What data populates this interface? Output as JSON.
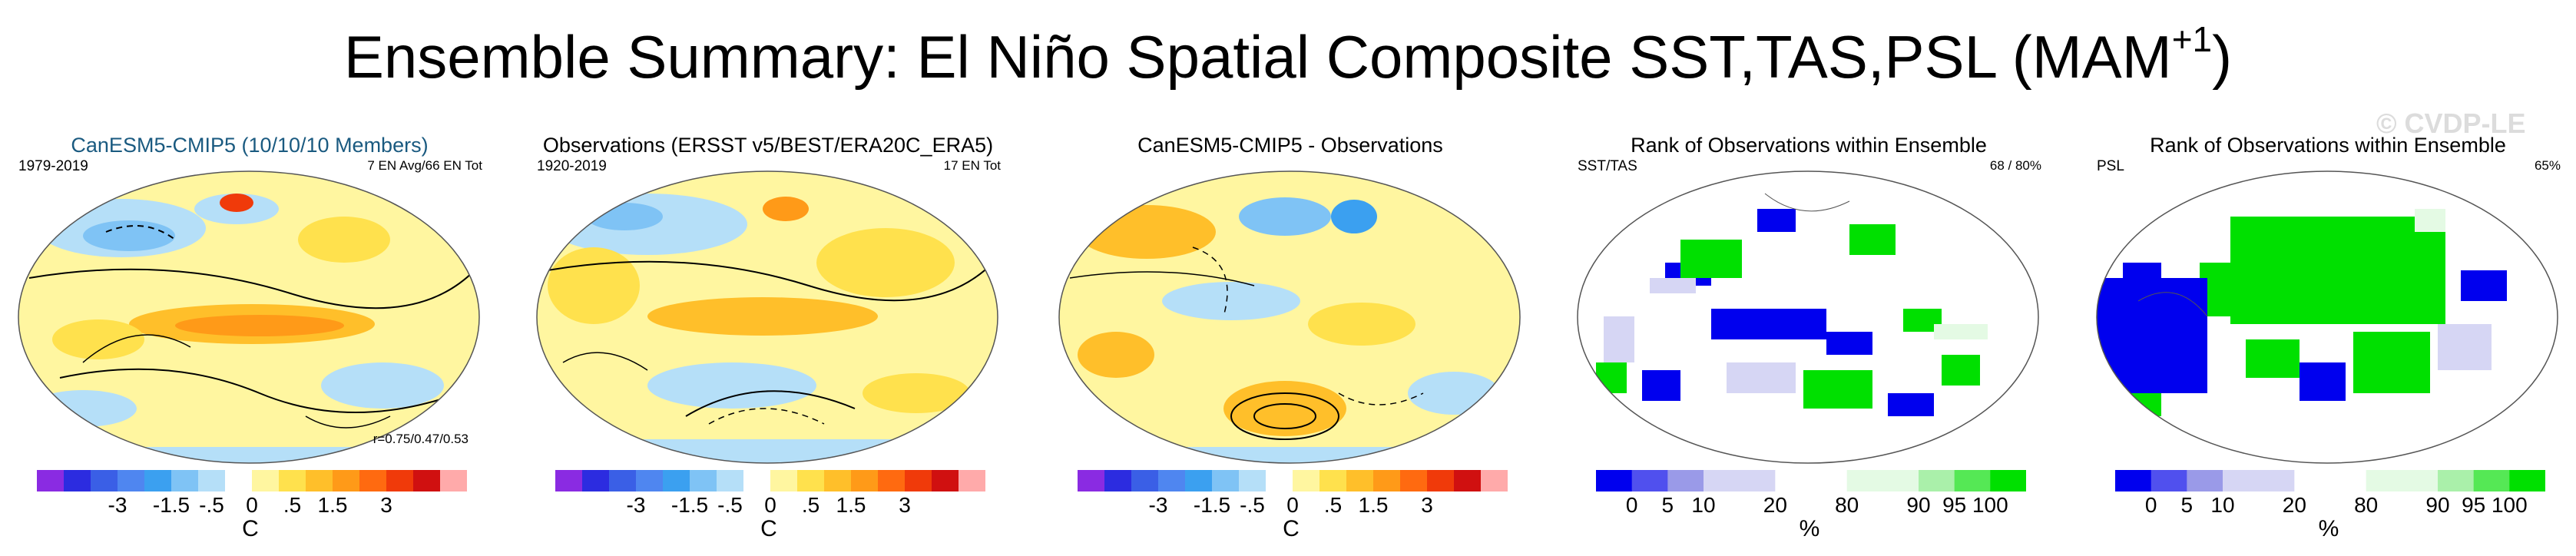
{
  "title": {
    "main": "Ensemble Summary: El Niño Spatial Composite SST,TAS,PSL (MAM",
    "sup": "+1",
    "close": ")"
  },
  "watermark": "© CVDP-LE",
  "panels": [
    {
      "title": "CanESM5-CMIP5 (10/10/10 Members)",
      "top_left": "1979-2019",
      "top_right": "7 EN Avg/66 EN Tot",
      "bottom_right": "r=0.75/0.47/0.53"
    },
    {
      "title": "Observations (ERSST v5/BEST/ERA20C_ERA5)",
      "top_left": "1920-2019",
      "top_right": "17 EN Tot"
    },
    {
      "title": "CanESM5-CMIP5 - Observations"
    },
    {
      "title": "Rank of Observations within Ensemble",
      "top_left": "SST/TAS",
      "top_right": "68 /  80%"
    },
    {
      "title": "Rank of Observations within Ensemble",
      "top_left": "PSL",
      "top_right": "65%"
    }
  ],
  "temp_legend": {
    "colors": [
      "#8a2be2",
      "#2c2ce0",
      "#3a5fe6",
      "#4f86f0",
      "#3ba0f0",
      "#7fc3f5",
      "#b5dff8",
      "#ffffff",
      "#fff6a0",
      "#ffe14d",
      "#ffbf2a",
      "#ff9a18",
      "#ff6a10",
      "#f03a0a",
      "#d01010",
      "#ffaaaa"
    ],
    "ticks": [
      "-3",
      "-1.5",
      "-.5",
      "0",
      ".5",
      "1.5",
      "3"
    ],
    "unit": "C"
  },
  "rank_legend": {
    "colors": [
      "#0000ee",
      "#5050ee",
      "#9a9ae8",
      "#d6d6f4",
      "#d6d6f4",
      "#ffffff",
      "#ffffff",
      "#e4fae4",
      "#e4fae4",
      "#aaf0aa",
      "#55e855",
      "#00e000"
    ],
    "ticks": [
      "0",
      "5",
      "10",
      "20",
      "80",
      "90",
      "95",
      "100"
    ],
    "unit": "%"
  }
}
